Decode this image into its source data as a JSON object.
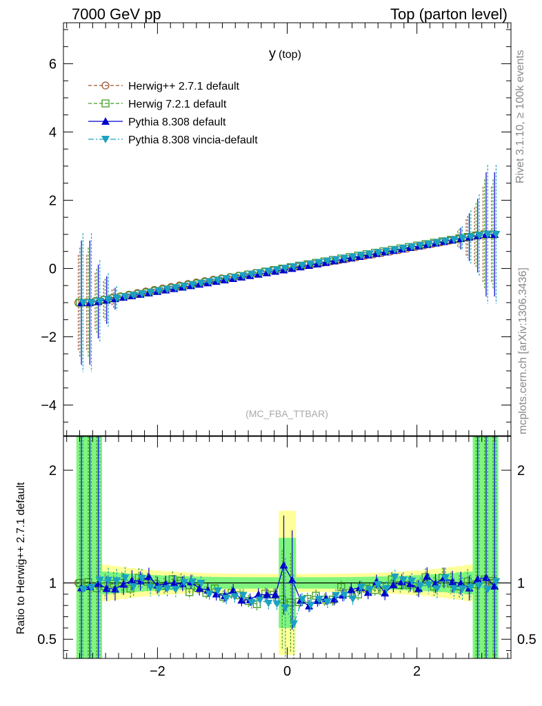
{
  "header": {
    "left": "7000 GeV pp",
    "right": "Top (parton level)"
  },
  "side": {
    "rivet": "Rivet 3.1.10, ≥ 100k events",
    "mcplots": "mcplots.cern.ch [arXiv:1306.3436]"
  },
  "chart_data": [
    {
      "type": "scatter",
      "title": "y (top)",
      "title_main": "y",
      "title_sub": "(top)",
      "watermark": "(MC_FBA_TTBAR)",
      "xlim": [
        -3.45,
        3.45
      ],
      "ylim": [
        -4.9,
        7.2
      ],
      "ytick_labels": [
        "−4",
        "−2",
        "0",
        "2",
        "4",
        "6"
      ],
      "ytick_values": [
        -4,
        -2,
        0,
        2,
        4,
        6
      ],
      "series": [
        {
          "name": "Herwig++ 2.7.1 default",
          "color": "#a0522d",
          "marker": "open-circle",
          "linestyle": "dashed"
        },
        {
          "name": "Herwig 7.2.1 default",
          "color": "#3c9a1e",
          "marker": "open-square",
          "linestyle": "dashed"
        },
        {
          "name": "Pythia 8.308 default",
          "color": "#0000cc",
          "marker": "filled-triangle-up",
          "linestyle": "solid"
        },
        {
          "name": "Pythia 8.308 vincia-default",
          "color": "#1ba1c2",
          "marker": "filled-triangle-down",
          "linestyle": "dashdot"
        }
      ],
      "curve": {
        "description": "mean value vs rapidity",
        "ends": [
          -1.0,
          1.0
        ],
        "edge_error_max": 1.4
      }
    },
    {
      "type": "line",
      "ylabel": "Ratio to Herwig++ 2.7.1 default",
      "xlim": [
        -3.45,
        3.45
      ],
      "ylim": [
        0.33,
        2.3
      ],
      "ytick_labels": [
        "0.5",
        "1",
        "2"
      ],
      "ytick_values": [
        0.5,
        1,
        2
      ],
      "xtick_labels": [
        "−2",
        "0",
        "2"
      ],
      "xtick_values": [
        -2,
        0,
        2
      ],
      "reference": 1.0,
      "band_colors": {
        "inner": "#7ff57f",
        "outer": "#ffff99"
      }
    }
  ]
}
